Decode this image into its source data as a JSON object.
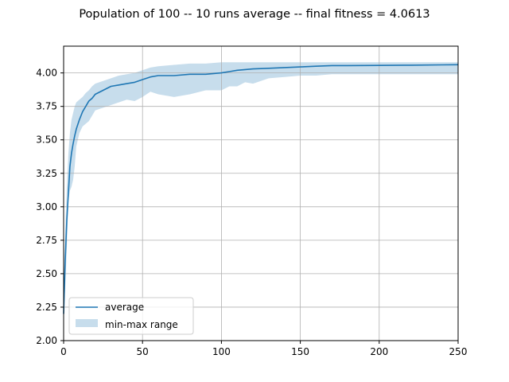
{
  "chart_data": {
    "type": "line",
    "title": "Population of 100 -- 10 runs average -- final fitness = 4.0613",
    "xlabel": "",
    "ylabel": "",
    "xlim": [
      0,
      250
    ],
    "ylim": [
      2.0,
      4.2
    ],
    "x_ticks": [
      0,
      50,
      100,
      150,
      200,
      250
    ],
    "x_tick_labels": [
      "0",
      "50",
      "100",
      "150",
      "200",
      "250"
    ],
    "y_ticks": [
      2.0,
      2.25,
      2.5,
      2.75,
      3.0,
      3.25,
      3.5,
      3.75,
      4.0
    ],
    "y_tick_labels": [
      "2.00",
      "2.25",
      "2.50",
      "2.75",
      "3.00",
      "3.25",
      "3.50",
      "3.75",
      "4.00"
    ],
    "grid": true,
    "legend_position": "lower-left",
    "series": [
      {
        "name": "average",
        "kind": "line",
        "color": "#1f77b4",
        "x": [
          0,
          1,
          2,
          3,
          4,
          5,
          6,
          7,
          8,
          10,
          12,
          14,
          16,
          18,
          20,
          25,
          30,
          35,
          40,
          45,
          50,
          55,
          60,
          70,
          80,
          90,
          100,
          105,
          110,
          115,
          120,
          130,
          140,
          150,
          160,
          170,
          180,
          200,
          220,
          240,
          250
        ],
        "y": [
          2.2,
          2.6,
          2.9,
          3.1,
          3.3,
          3.4,
          3.47,
          3.53,
          3.58,
          3.65,
          3.71,
          3.75,
          3.79,
          3.81,
          3.84,
          3.87,
          3.9,
          3.91,
          3.92,
          3.93,
          3.95,
          3.97,
          3.98,
          3.98,
          3.99,
          3.99,
          4.0,
          4.01,
          4.02,
          4.025,
          4.03,
          4.035,
          4.04,
          4.045,
          4.05,
          4.055,
          4.055,
          4.056,
          4.058,
          4.06,
          4.0613
        ]
      },
      {
        "name": "min-max range",
        "kind": "band",
        "color": "#1f77b4",
        "x": [
          0,
          1,
          2,
          3,
          4,
          5,
          6,
          7,
          8,
          10,
          12,
          14,
          16,
          18,
          20,
          25,
          30,
          35,
          40,
          45,
          50,
          55,
          60,
          70,
          80,
          90,
          100,
          105,
          110,
          115,
          120,
          130,
          140,
          150,
          160,
          170,
          180,
          200,
          220,
          240,
          250
        ],
        "upper": [
          2.35,
          2.8,
          3.15,
          3.4,
          3.55,
          3.65,
          3.7,
          3.75,
          3.78,
          3.8,
          3.82,
          3.85,
          3.87,
          3.9,
          3.92,
          3.94,
          3.96,
          3.98,
          3.99,
          4.0,
          4.02,
          4.04,
          4.05,
          4.06,
          4.07,
          4.07,
          4.08,
          4.08,
          4.08,
          4.08,
          4.08,
          4.08,
          4.08,
          4.08,
          4.08,
          4.08,
          4.08,
          4.08,
          4.08,
          4.08,
          4.08
        ],
        "lower": [
          2.2,
          2.4,
          2.7,
          3.05,
          3.12,
          3.15,
          3.2,
          3.3,
          3.45,
          3.55,
          3.6,
          3.62,
          3.64,
          3.68,
          3.72,
          3.74,
          3.76,
          3.78,
          3.8,
          3.79,
          3.82,
          3.86,
          3.84,
          3.82,
          3.84,
          3.87,
          3.87,
          3.9,
          3.9,
          3.93,
          3.92,
          3.96,
          3.97,
          3.98,
          3.98,
          3.99,
          3.99,
          3.99,
          3.99,
          3.99,
          3.99
        ]
      }
    ]
  }
}
